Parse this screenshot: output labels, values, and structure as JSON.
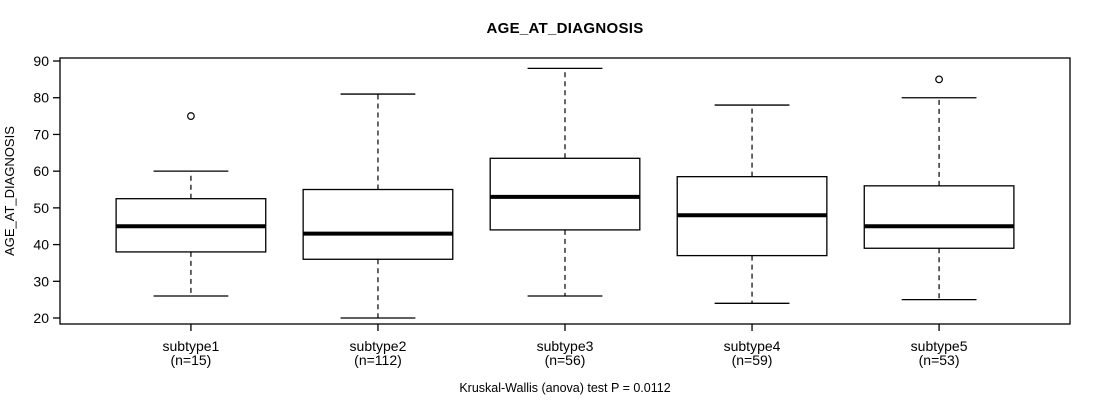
{
  "title": "AGE_AT_DIAGNOSIS",
  "caption": "Kruskal-Wallis (anova) test P = 0.0112",
  "chart_data": {
    "type": "boxplot",
    "title": "AGE_AT_DIAGNOSIS",
    "ylabel": "AGE_AT_DIAGNOSIS",
    "xlabel": "",
    "ylim": [
      20,
      90
    ],
    "yticks": [
      20,
      30,
      40,
      50,
      60,
      70,
      80,
      90
    ],
    "grid": false,
    "legend": "none",
    "caption": "Kruskal-Wallis (anova) test P = 0.0112",
    "categories": [
      "subtype1",
      "subtype2",
      "subtype3",
      "subtype4",
      "subtype5"
    ],
    "category_sublabels": [
      "(n=15)",
      "(n=112)",
      "(n=56)",
      "(n=59)",
      "(n=53)"
    ],
    "series": [
      {
        "name": "subtype1",
        "n": 15,
        "whisker_low": 26,
        "q1": 38,
        "median": 45,
        "q3": 52.5,
        "whisker_high": 60,
        "outliers": [
          75
        ]
      },
      {
        "name": "subtype2",
        "n": 112,
        "whisker_low": 20,
        "q1": 36,
        "median": 43,
        "q3": 55,
        "whisker_high": 81,
        "outliers": []
      },
      {
        "name": "subtype3",
        "n": 56,
        "whisker_low": 26,
        "q1": 44,
        "median": 53,
        "q3": 63.5,
        "whisker_high": 88,
        "outliers": []
      },
      {
        "name": "subtype4",
        "n": 59,
        "whisker_low": 24,
        "q1": 37,
        "median": 48,
        "q3": 58.5,
        "whisker_high": 78,
        "outliers": []
      },
      {
        "name": "subtype5",
        "n": 53,
        "whisker_low": 25,
        "q1": 39,
        "median": 45,
        "q3": 56,
        "whisker_high": 80,
        "outliers": [
          85
        ]
      }
    ],
    "colors": {
      "line": "#000000",
      "box_fill": "#ffffff",
      "background": "#ffffff"
    }
  }
}
